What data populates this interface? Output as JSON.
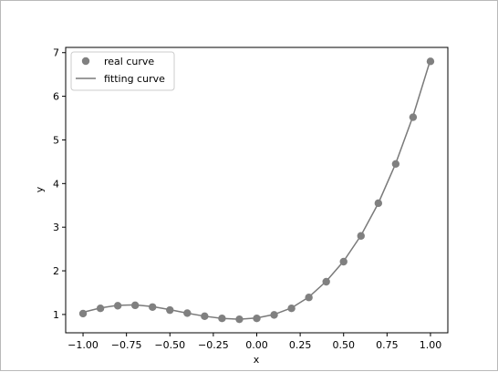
{
  "chart_data": {
    "type": "scatter",
    "title": "",
    "xlabel": "x",
    "ylabel": "y",
    "xlim": [
      -1.1,
      1.1
    ],
    "ylim": [
      0.58,
      7.12
    ],
    "xticks": [
      -1.0,
      -0.75,
      -0.5,
      -0.25,
      0.0,
      0.25,
      0.5,
      0.75,
      1.0
    ],
    "xtick_labels": [
      "−1.00",
      "−0.75",
      "−0.50",
      "−0.25",
      "0.00",
      "0.25",
      "0.50",
      "0.75",
      "1.00"
    ],
    "yticks": [
      1,
      2,
      3,
      4,
      5,
      6,
      7
    ],
    "ytick_labels": [
      "1",
      "2",
      "3",
      "4",
      "5",
      "6",
      "7"
    ],
    "grid": false,
    "legend_position": "top-left",
    "colors": {
      "points": "#808080",
      "line": "#7a7a7a",
      "axes": "#000000"
    },
    "series": [
      {
        "name": "real curve",
        "style": "markers",
        "x": [
          -1.0,
          -0.9,
          -0.8,
          -0.7,
          -0.6,
          -0.5,
          -0.4,
          -0.3,
          -0.2,
          -0.1,
          0.0,
          0.1,
          0.2,
          0.3,
          0.4,
          0.5,
          0.6,
          0.7,
          0.8,
          0.9,
          1.0
        ],
        "y": [
          1.02,
          1.14,
          1.2,
          1.21,
          1.17,
          1.1,
          1.03,
          0.96,
          0.91,
          0.89,
          0.91,
          0.99,
          1.14,
          1.39,
          1.75,
          2.21,
          2.8,
          3.55,
          4.45,
          5.52,
          6.8
        ]
      },
      {
        "name": "fitting curve",
        "style": "line",
        "x": [
          -1.0,
          -0.9,
          -0.8,
          -0.7,
          -0.6,
          -0.5,
          -0.4,
          -0.3,
          -0.2,
          -0.1,
          0.0,
          0.1,
          0.2,
          0.3,
          0.4,
          0.5,
          0.6,
          0.7,
          0.8,
          0.9,
          1.0
        ],
        "y": [
          1.05,
          1.15,
          1.21,
          1.22,
          1.18,
          1.11,
          1.03,
          0.96,
          0.91,
          0.89,
          0.92,
          1.0,
          1.15,
          1.4,
          1.76,
          2.22,
          2.81,
          3.55,
          4.46,
          5.55,
          6.84
        ]
      }
    ]
  }
}
